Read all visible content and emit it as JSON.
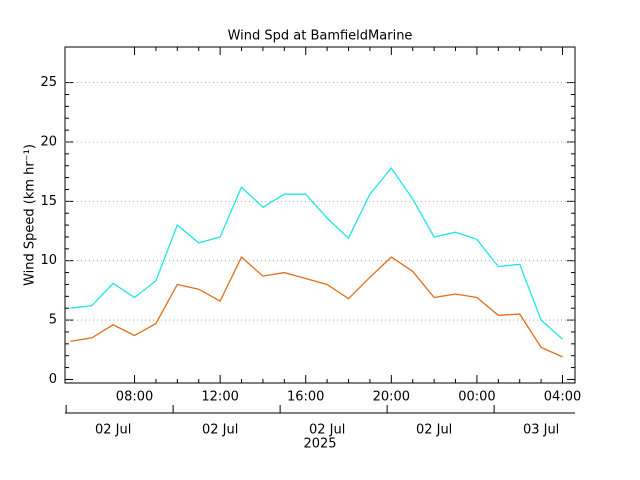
{
  "chart_data": {
    "type": "line",
    "title": "Wind Spd at BamfieldMarine",
    "ylabel": "Wind Speed (km hr⁻¹)",
    "x": [
      "2025-07-02T05:00",
      "2025-07-02T06:00",
      "2025-07-02T07:00",
      "2025-07-02T08:00",
      "2025-07-02T09:00",
      "2025-07-02T10:00",
      "2025-07-02T11:00",
      "2025-07-02T12:00",
      "2025-07-02T13:00",
      "2025-07-02T14:00",
      "2025-07-02T15:00",
      "2025-07-02T16:00",
      "2025-07-02T17:00",
      "2025-07-02T18:00",
      "2025-07-02T19:00",
      "2025-07-02T20:00",
      "2025-07-02T21:00",
      "2025-07-02T22:00",
      "2025-07-02T23:00",
      "2025-07-03T00:00",
      "2025-07-03T01:00",
      "2025-07-03T02:00",
      "2025-07-03T03:00",
      "2025-07-03T04:00"
    ],
    "series": [
      {
        "color": "#1ee6e6",
        "values": [
          6.0,
          6.2,
          8.1,
          6.9,
          8.3,
          13.0,
          11.5,
          12.0,
          16.2,
          14.5,
          15.6,
          15.6,
          13.6,
          11.9,
          15.6,
          17.8,
          15.2,
          12.0,
          12.4,
          11.8,
          9.5,
          9.7,
          5.0,
          3.4
        ]
      },
      {
        "color": "#e0701a",
        "values": [
          3.2,
          3.5,
          4.6,
          3.7,
          4.7,
          8.0,
          7.6,
          6.6,
          10.3,
          8.7,
          9.0,
          8.5,
          8.0,
          6.8,
          8.6,
          10.3,
          9.1,
          6.9,
          7.2,
          6.9,
          5.4,
          5.5,
          2.7,
          1.9
        ]
      }
    ],
    "xlim": [
      "2025-07-02T04:45",
      "2025-07-03T04:35"
    ],
    "xticks": [
      {
        "value": "2025-07-02T08:00",
        "label": "08:00"
      },
      {
        "value": "2025-07-02T12:00",
        "label": "12:00"
      },
      {
        "value": "2025-07-02T16:00",
        "label": "16:00"
      },
      {
        "value": "2025-07-02T20:00",
        "label": "20:00"
      },
      {
        "value": "2025-07-03T00:00",
        "label": "00:00"
      },
      {
        "value": "2025-07-03T04:00",
        "label": "04:00"
      }
    ],
    "date_ticks": [
      {
        "value": "2025-07-02T07:00",
        "label": "02 Jul"
      },
      {
        "value": "2025-07-02T12:00",
        "label": "02 Jul"
      },
      {
        "value": "2025-07-02T17:00",
        "label": "02 Jul"
      },
      {
        "value": "2025-07-02T22:00",
        "label": "02 Jul"
      },
      {
        "value": "2025-07-03T03:00",
        "label": "03 Jul"
      }
    ],
    "year_label": "2025",
    "ylim": [
      -0.3,
      28
    ],
    "yticks": [
      0,
      5,
      10,
      15,
      20,
      25
    ],
    "grid": true
  }
}
